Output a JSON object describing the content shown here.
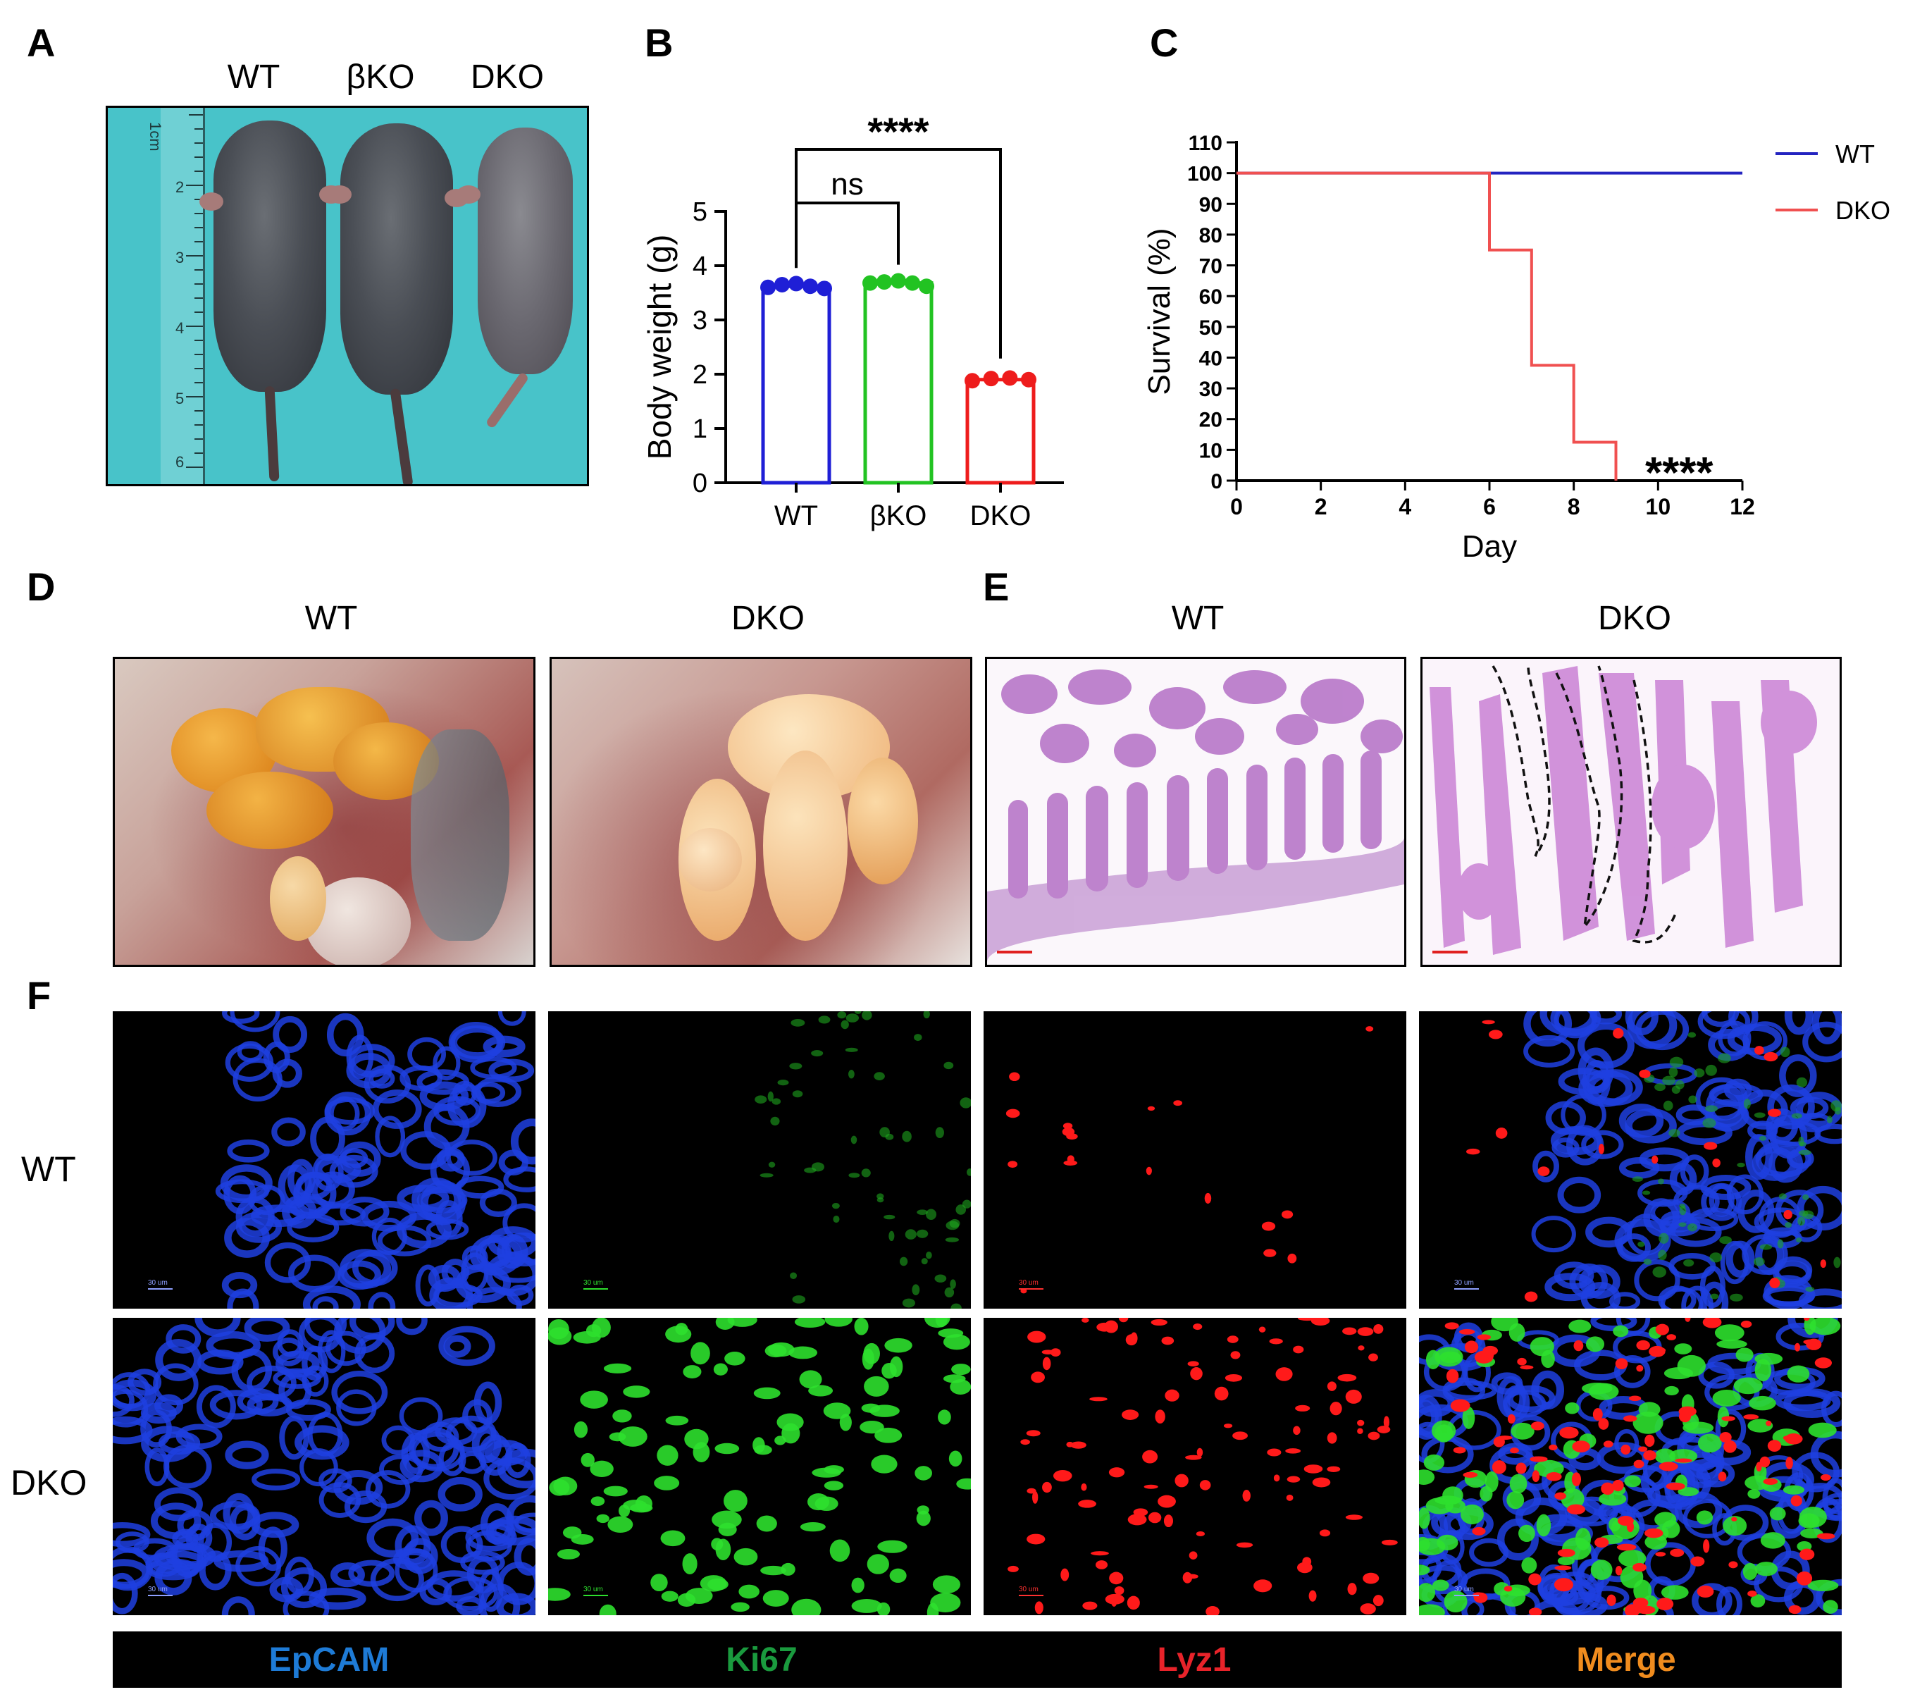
{
  "panels": {
    "A": {
      "letter": "A",
      "groups": [
        "WT",
        "βKO",
        "DKO"
      ],
      "ruler_unit": "1cm",
      "ruler_ticks": [
        "2",
        "3",
        "4",
        "5",
        "6"
      ]
    },
    "B": {
      "letter": "B",
      "signif_top": "****",
      "signif_ns": "ns"
    },
    "C": {
      "letter": "C",
      "signif": "****"
    },
    "D": {
      "letter": "D",
      "headers": [
        "WT",
        "DKO"
      ]
    },
    "E": {
      "letter": "E",
      "headers": [
        "WT",
        "DKO"
      ]
    },
    "F": {
      "letter": "F",
      "rows": [
        "WT",
        "DKO"
      ],
      "channels": [
        {
          "label": "EpCAM",
          "color": "#1e7bd6"
        },
        {
          "label": "Ki67",
          "color": "#1a9a3e"
        },
        {
          "label": "Lyz1",
          "color": "#e8232a"
        },
        {
          "label": "Merge",
          "color": "#f08c1e"
        }
      ],
      "scale_text": "30 um"
    }
  },
  "chart_data": [
    {
      "type": "bar",
      "panel": "B",
      "categories": [
        "WT",
        "βKO",
        "DKO"
      ],
      "values": [
        3.62,
        3.68,
        1.9
      ],
      "points": [
        [
          3.6,
          3.65,
          3.67,
          3.62,
          3.58
        ],
        [
          3.68,
          3.7,
          3.72,
          3.68,
          3.62
        ],
        [
          1.88,
          1.92,
          1.93,
          1.9
        ]
      ],
      "colors": [
        "#1f1fd6",
        "#22c322",
        "#ee1c1c"
      ],
      "ylabel": "Body weight (g)",
      "ylim": [
        0,
        5
      ],
      "yticks": [
        0,
        1,
        2,
        3,
        4,
        5
      ]
    },
    {
      "type": "line",
      "panel": "C",
      "series": [
        {
          "name": "WT",
          "color": "#2424c0",
          "x": [
            0,
            12
          ],
          "y": [
            100,
            100
          ]
        },
        {
          "name": "DKO",
          "color": "#f05050",
          "x": [
            0,
            6,
            6,
            7,
            7,
            8,
            8,
            9,
            9
          ],
          "y": [
            100,
            100,
            75,
            75,
            37.5,
            37.5,
            12.5,
            12.5,
            0
          ]
        }
      ],
      "xlabel": "Day",
      "ylabel": "Survival (%)",
      "xlim": [
        0,
        12
      ],
      "ylim": [
        0,
        110
      ],
      "xticks": [
        0,
        2,
        4,
        6,
        8,
        10,
        12
      ],
      "yticks": [
        0,
        10,
        20,
        30,
        40,
        50,
        60,
        70,
        80,
        90,
        100,
        110
      ],
      "legend": "top-right"
    }
  ]
}
